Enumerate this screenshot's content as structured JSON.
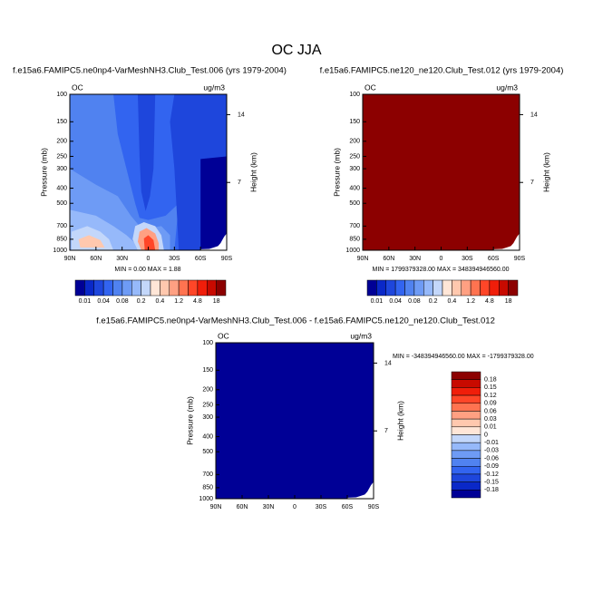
{
  "title": "OC JJA",
  "chart_data": [
    {
      "type": "contour",
      "title": "f.e15a6.FAMIPC5.ne0np4-VarMeshNH3.Club_Test.006 (yrs 1979-2004)",
      "left_label": "OC",
      "right_label": "ug/m3",
      "ylabel": "Pressure (mb)",
      "y2label": "Height (km)",
      "log_y": true,
      "xlim": [
        90,
        -90
      ],
      "xticks": [
        {
          "value": 90,
          "label": "90N"
        },
        {
          "value": 60,
          "label": "60N"
        },
        {
          "value": 30,
          "label": "30N"
        },
        0,
        {
          "value": -30,
          "label": "30S"
        },
        {
          "value": -60,
          "label": "60S"
        },
        {
          "value": -90,
          "label": "90S"
        }
      ],
      "ylim": [
        1000,
        100
      ],
      "yticks": [
        100,
        150,
        200,
        250,
        300,
        400,
        500,
        700,
        850,
        1000
      ],
      "y2lim": [
        0,
        16.1
      ],
      "y2ticks": [
        14,
        7
      ],
      "field": "contour",
      "min_max": "MIN =   0.00   MAX =   1.88",
      "colorbar": {
        "orientation": "horizontal",
        "levels": [
          0.01,
          0.04,
          0.08,
          0.2,
          0.4,
          1.2,
          4.8,
          18
        ],
        "colors": [
          "#000096",
          "#0a28c8",
          "#1e46dc",
          "#3264f0",
          "#5082f0",
          "#6e9bf5",
          "#96b9fa",
          "#c3d7fa",
          "#ffe6d7",
          "#ffc8ae",
          "#ffa082",
          "#ff7350",
          "#ff4628",
          "#f01e0a",
          "#c80a00",
          "#8c0000"
        ]
      }
    },
    {
      "type": "contour",
      "title": "f.e15a6.FAMIPC5.ne120_ne120.Club_Test.012 (yrs 1979-2004)",
      "left_label": "OC",
      "right_label": "ug/m3",
      "ylabel": "Pressure (mb)",
      "y2label": "Height (km)",
      "log_y": true,
      "xlim": [
        90,
        -90
      ],
      "xticks": [
        {
          "value": 90,
          "label": "90N"
        },
        {
          "value": 60,
          "label": "60N"
        },
        {
          "value": 30,
          "label": "30N"
        },
        0,
        {
          "value": -30,
          "label": "30S"
        },
        {
          "value": -60,
          "label": "60S"
        },
        {
          "value": -90,
          "label": "90S"
        }
      ],
      "ylim": [
        1000,
        100
      ],
      "yticks": [
        100,
        150,
        200,
        250,
        300,
        400,
        500,
        700,
        850,
        1000
      ],
      "y2lim": [
        0,
        16.1
      ],
      "y2ticks": [
        14,
        7
      ],
      "field": "#8c0000",
      "min_max": "MIN = 1799379328.00   MAX = 348394946560.00",
      "colorbar": {
        "orientation": "horizontal",
        "levels": [
          0.01,
          0.04,
          0.08,
          0.2,
          0.4,
          1.2,
          4.8,
          18
        ],
        "colors": [
          "#000096",
          "#0a28c8",
          "#1e46dc",
          "#3264f0",
          "#5082f0",
          "#6e9bf5",
          "#96b9fa",
          "#c3d7fa",
          "#ffe6d7",
          "#ffc8ae",
          "#ffa082",
          "#ff7350",
          "#ff4628",
          "#f01e0a",
          "#c80a00",
          "#8c0000"
        ]
      }
    },
    {
      "type": "contour",
      "title": "f.e15a6.FAMIPC5.ne0np4-VarMeshNH3.Club_Test.006 - f.e15a6.FAMIPC5.ne120_ne120.Club_Test.012",
      "left_label": "OC",
      "right_label": "ug/m3",
      "ylabel": "Pressure (mb)",
      "y2label": "Height (km)",
      "log_y": true,
      "xlim": [
        90,
        -90
      ],
      "xticks": [
        {
          "value": 90,
          "label": "90N"
        },
        {
          "value": 60,
          "label": "60N"
        },
        {
          "value": 30,
          "label": "30N"
        },
        0,
        {
          "value": -30,
          "label": "30S"
        },
        {
          "value": -60,
          "label": "60S"
        },
        {
          "value": -90,
          "label": "90S"
        }
      ],
      "ylim": [
        1000,
        100
      ],
      "yticks": [
        100,
        150,
        200,
        250,
        300,
        400,
        500,
        700,
        850,
        1000
      ],
      "y2lim": [
        0,
        16.1
      ],
      "y2ticks": [
        14,
        7
      ],
      "field": "#000096",
      "min_max": "MIN = -348394946560.00   MAX = -1799379328.00",
      "colorbar": {
        "orientation": "vertical",
        "levels": [
          0.18,
          0.15,
          0.12,
          0.09,
          0.06,
          0.03,
          0.01,
          0,
          -0.01,
          -0.03,
          -0.06,
          -0.09,
          -0.12,
          -0.15,
          -0.18
        ],
        "colors": [
          "#8c0000",
          "#c80a00",
          "#f01e0a",
          "#ff4628",
          "#ff7350",
          "#ffa082",
          "#ffc8ae",
          "#ffe6d7",
          "#c3d7fa",
          "#96b9fa",
          "#6e9bf5",
          "#5082f0",
          "#3264f0",
          "#1e46dc",
          "#0a28c8",
          "#000096"
        ]
      }
    }
  ]
}
